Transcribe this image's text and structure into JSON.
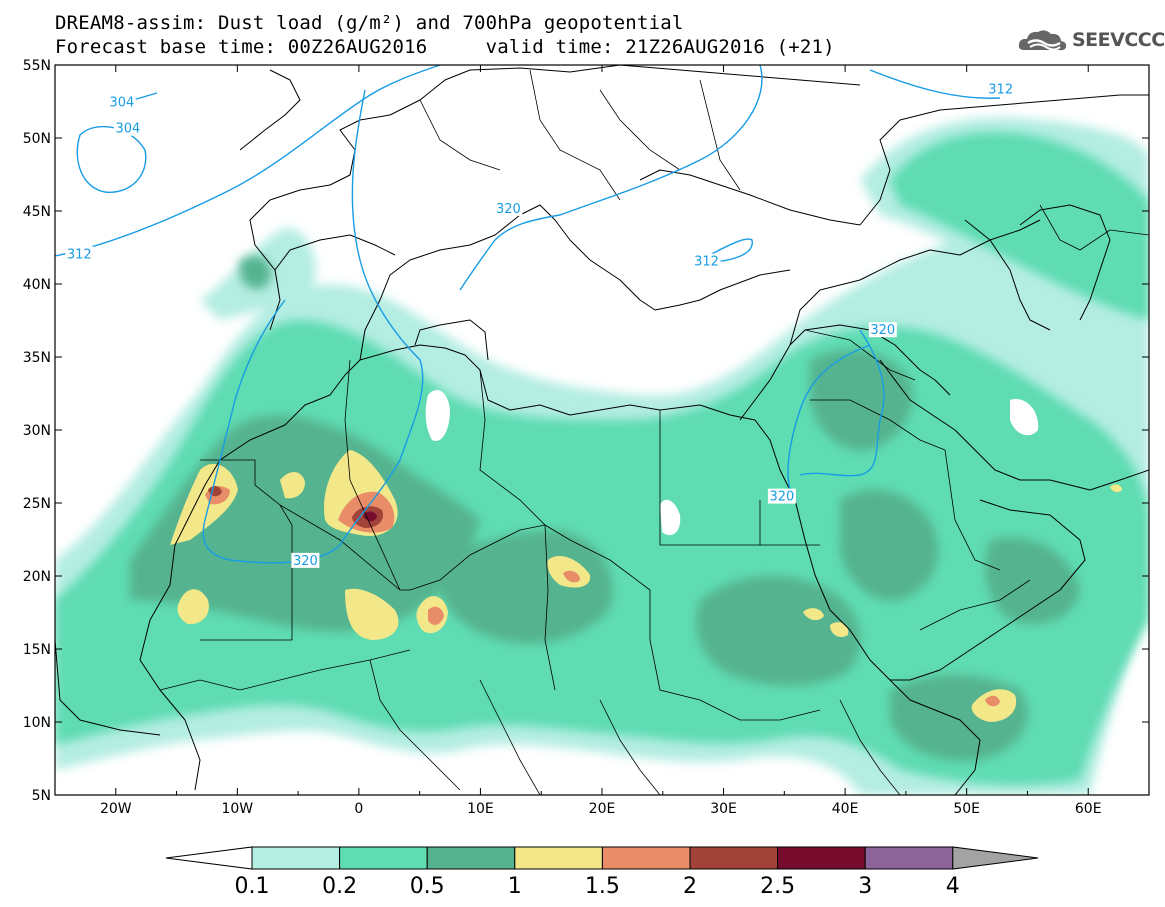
{
  "header": {
    "line1": "DREAM8-assim: Dust load (g/m²) and 700hPa geopotential",
    "line2": "Forecast base time: 00Z26AUG2016     valid time: 21Z26AUG2016 (+21)"
  },
  "logo": {
    "text": "SEEVCCC",
    "icon": "cloud-logo-icon"
  },
  "map": {
    "lon_range": [
      -25,
      65
    ],
    "lat_range": [
      5,
      55
    ],
    "lon_ticks": [
      {
        "value": -20,
        "label": "20W"
      },
      {
        "value": -10,
        "label": "10W"
      },
      {
        "value": 0,
        "label": "0"
      },
      {
        "value": 10,
        "label": "10E"
      },
      {
        "value": 20,
        "label": "20E"
      },
      {
        "value": 30,
        "label": "30E"
      },
      {
        "value": 40,
        "label": "40E"
      },
      {
        "value": 50,
        "label": "50E"
      },
      {
        "value": 60,
        "label": "60E"
      }
    ],
    "lat_ticks": [
      {
        "value": 5,
        "label": "5N"
      },
      {
        "value": 10,
        "label": "10N"
      },
      {
        "value": 15,
        "label": "15N"
      },
      {
        "value": 20,
        "label": "20N"
      },
      {
        "value": 25,
        "label": "25N"
      },
      {
        "value": 30,
        "label": "30N"
      },
      {
        "value": 35,
        "label": "35N"
      },
      {
        "value": 40,
        "label": "40N"
      },
      {
        "value": 45,
        "label": "45N"
      },
      {
        "value": 50,
        "label": "50N"
      },
      {
        "value": 55,
        "label": "55N"
      }
    ],
    "contour_labels": [
      {
        "text": "304",
        "lon": -19.5,
        "lat": 52.3
      },
      {
        "text": "304",
        "lon": -19.0,
        "lat": 50.5
      },
      {
        "text": "312",
        "lon": -23.0,
        "lat": 41.9
      },
      {
        "text": "320",
        "lon": 12.3,
        "lat": 45.0
      },
      {
        "text": "312",
        "lon": 28.6,
        "lat": 41.4
      },
      {
        "text": "312",
        "lon": 52.8,
        "lat": 53.2
      },
      {
        "text": "320",
        "lon": 43.1,
        "lat": 36.7
      },
      {
        "text": "320",
        "lon": 34.8,
        "lat": 25.3
      },
      {
        "text": "320",
        "lon": -4.4,
        "lat": 20.9
      }
    ]
  },
  "colorbar": {
    "colors": [
      "#b4ede2",
      "#5fdcb2",
      "#55b38f",
      "#f2e88a",
      "#e88d68",
      "#a2433a",
      "#780c2e",
      "#8c649a"
    ],
    "end_colors": {
      "low": "#ffffff",
      "high": "#a3a3a3"
    },
    "labels": [
      "0.1",
      "0.2",
      "0.5",
      "1",
      "1.5",
      "2",
      "2.5",
      "3",
      "4"
    ]
  }
}
